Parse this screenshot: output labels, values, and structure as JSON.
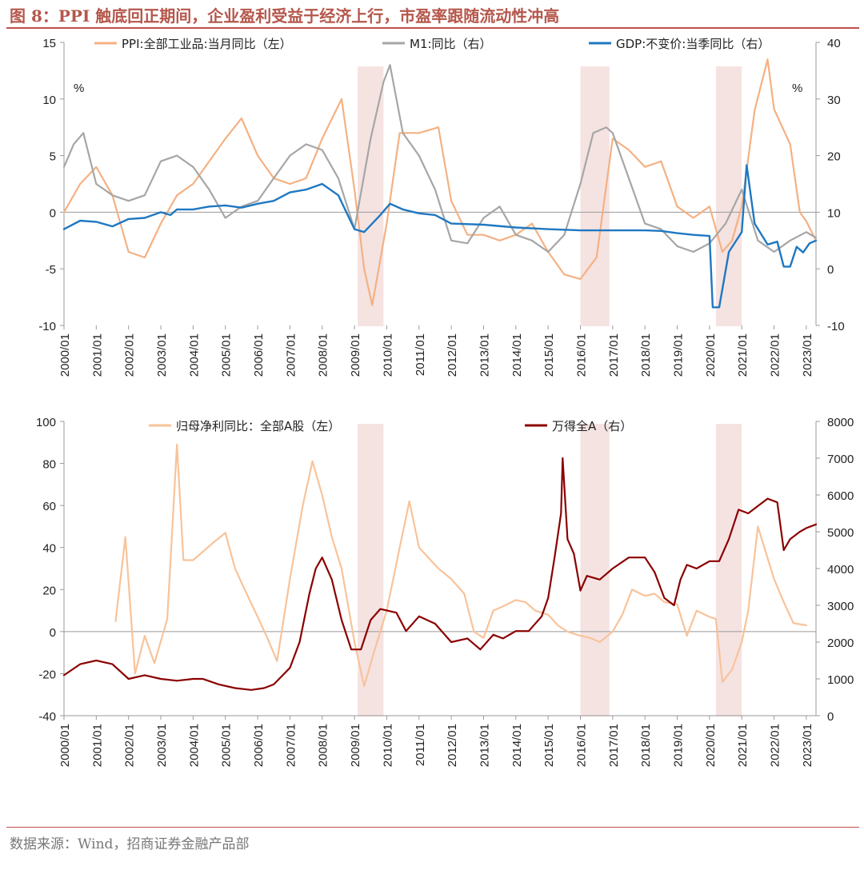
{
  "title": "图 8：PPI 触底回正期间，企业盈利受益于经济上行，市盈率跟随流动性冲高",
  "source": "数据来源：Wind，招商证券金融产品部",
  "colors": {
    "ppi": "#f4b183",
    "m1": "#a6a6a6",
    "gdp": "#1f78c1",
    "profit": "#f8c39a",
    "wind": "#8b0000",
    "shade": "#f2dcdb",
    "accent": "#c0504d"
  },
  "chart_data": [
    {
      "type": "line",
      "x_ticks": [
        "2000/01",
        "2001/01",
        "2002/01",
        "2003/01",
        "2004/01",
        "2005/01",
        "2006/01",
        "2007/01",
        "2008/01",
        "2009/01",
        "2010/01",
        "2011/01",
        "2012/01",
        "2013/01",
        "2014/01",
        "2015/01",
        "2016/01",
        "2017/01",
        "2018/01",
        "2019/01",
        "2020/01",
        "2021/01",
        "2022/01",
        "2023/01"
      ],
      "y_left_ticks": [
        "15",
        "10",
        "5",
        "0",
        "-5",
        "-10"
      ],
      "y_right_ticks": [
        "40",
        "30",
        "20",
        "10",
        "0",
        "-10"
      ],
      "y_left_range": [
        -10,
        15
      ],
      "y_right_range": [
        -10,
        40
      ],
      "left_unit": "%",
      "right_unit": "%",
      "shaded_periods": [
        [
          2009.1,
          2009.9
        ],
        [
          2016.0,
          2016.9
        ],
        [
          2020.2,
          2021.0
        ]
      ],
      "series": [
        {
          "name": "PPI:全部工业品:当月同比（左）",
          "axis": "left",
          "x": [
            2000.0,
            2000.5,
            2001.0,
            2001.5,
            2002.0,
            2002.5,
            2003.0,
            2003.5,
            2004.0,
            2004.5,
            2005.0,
            2005.5,
            2006.0,
            2006.5,
            2007.0,
            2007.5,
            2008.0,
            2008.6,
            2009.0,
            2009.3,
            2009.55,
            2010.0,
            2010.4,
            2011.0,
            2011.6,
            2012.0,
            2012.5,
            2013.0,
            2013.5,
            2014.0,
            2014.5,
            2015.0,
            2015.5,
            2016.0,
            2016.5,
            2017.0,
            2017.5,
            2018.0,
            2018.5,
            2019.0,
            2019.5,
            2020.0,
            2020.4,
            2020.7,
            2021.0,
            2021.4,
            2021.8,
            2022.0,
            2022.5,
            2022.8,
            2023.0,
            2023.3
          ],
          "values": [
            0.0,
            2.5,
            4.0,
            1.5,
            -3.5,
            -4.0,
            -1.0,
            1.5,
            2.5,
            4.5,
            6.5,
            8.3,
            5.0,
            3.0,
            2.5,
            3.0,
            6.5,
            10.0,
            2.0,
            -5.0,
            -8.2,
            -1.0,
            7.0,
            7.0,
            7.5,
            1.0,
            -2.0,
            -2.0,
            -2.5,
            -2.0,
            -1.0,
            -3.5,
            -5.5,
            -5.9,
            -4.0,
            6.5,
            5.5,
            4.0,
            4.5,
            0.5,
            -0.5,
            0.5,
            -3.5,
            -2.5,
            0.5,
            9.0,
            13.5,
            9.1,
            6.0,
            0.0,
            -0.8,
            -2.5
          ]
        },
        {
          "name": "M1:同比（右）",
          "axis": "right",
          "x": [
            2000.0,
            2000.3,
            2000.6,
            2001.0,
            2001.5,
            2002.0,
            2002.5,
            2003.0,
            2003.5,
            2004.0,
            2004.5,
            2005.0,
            2005.5,
            2006.0,
            2006.5,
            2007.0,
            2007.5,
            2008.0,
            2008.5,
            2009.0,
            2009.5,
            2009.9,
            2010.1,
            2010.5,
            2011.0,
            2011.5,
            2012.0,
            2012.5,
            2013.0,
            2013.5,
            2014.0,
            2014.5,
            2015.0,
            2015.5,
            2016.0,
            2016.4,
            2016.8,
            2017.0,
            2017.5,
            2018.0,
            2018.5,
            2019.0,
            2019.5,
            2020.0,
            2020.5,
            2021.0,
            2021.5,
            2022.0,
            2022.5,
            2023.0,
            2023.3
          ],
          "values": [
            18.0,
            22.0,
            24.0,
            15.0,
            13.0,
            12.0,
            13.0,
            19.0,
            20.0,
            18.0,
            14.0,
            9.0,
            11.0,
            12.0,
            16.0,
            20.0,
            22.0,
            21.0,
            16.0,
            7.0,
            23.0,
            33.0,
            36.0,
            24.0,
            20.0,
            14.0,
            5.0,
            4.5,
            9.0,
            11.0,
            6.0,
            5.0,
            3.0,
            6.0,
            15.0,
            24.0,
            25.0,
            24.0,
            16.0,
            8.0,
            7.0,
            4.0,
            3.0,
            4.5,
            8.0,
            14.0,
            5.0,
            3.0,
            5.0,
            6.5,
            5.5
          ]
        },
        {
          "name": "GDP:不变价:当季同比（右）",
          "axis": "right",
          "x": [
            2000.0,
            2000.5,
            2001.0,
            2001.5,
            2002.0,
            2002.5,
            2003.0,
            2003.3,
            2003.5,
            2004.0,
            2004.5,
            2005.0,
            2005.5,
            2006.0,
            2006.5,
            2007.0,
            2007.5,
            2008.0,
            2008.5,
            2009.0,
            2009.3,
            2009.8,
            2010.1,
            2010.5,
            2011.0,
            2011.5,
            2012.0,
            2013.0,
            2014.0,
            2015.0,
            2016.0,
            2017.0,
            2018.0,
            2018.5,
            2019.0,
            2019.5,
            2020.0,
            2020.1,
            2020.3,
            2020.6,
            2021.0,
            2021.15,
            2021.4,
            2021.8,
            2022.1,
            2022.3,
            2022.5,
            2022.7,
            2022.9,
            2023.1,
            2023.3
          ],
          "values": [
            7.0,
            8.5,
            8.3,
            7.5,
            8.8,
            9.0,
            10.0,
            9.5,
            10.5,
            10.5,
            11.0,
            11.2,
            10.8,
            11.5,
            12.0,
            13.5,
            14.0,
            15.0,
            13.0,
            7.0,
            6.5,
            9.5,
            11.5,
            10.5,
            9.8,
            9.5,
            8.0,
            7.8,
            7.3,
            7.0,
            6.8,
            6.8,
            6.8,
            6.7,
            6.3,
            6.0,
            5.8,
            -6.8,
            -6.8,
            3.0,
            6.5,
            18.3,
            8.0,
            4.3,
            4.8,
            0.4,
            0.4,
            3.9,
            2.9,
            4.5,
            5.0
          ]
        }
      ]
    },
    {
      "type": "line",
      "x_ticks": [
        "2000/01",
        "2001/01",
        "2002/01",
        "2003/01",
        "2004/01",
        "2005/01",
        "2006/01",
        "2007/01",
        "2008/01",
        "2009/01",
        "2010/01",
        "2011/01",
        "2012/01",
        "2013/01",
        "2014/01",
        "2015/01",
        "2016/01",
        "2017/01",
        "2018/01",
        "2019/01",
        "2020/01",
        "2021/01",
        "2022/01",
        "2023/01"
      ],
      "y_left_ticks": [
        "100",
        "80",
        "60",
        "40",
        "20",
        "0",
        "-20",
        "-40"
      ],
      "y_right_ticks": [
        "8000",
        "7000",
        "6000",
        "5000",
        "4000",
        "3000",
        "2000",
        "1000",
        "0"
      ],
      "y_left_range": [
        -40,
        100
      ],
      "y_right_range": [
        0,
        8000
      ],
      "shaded_periods": [
        [
          2009.1,
          2009.9
        ],
        [
          2016.0,
          2016.9
        ],
        [
          2020.2,
          2021.0
        ]
      ],
      "series": [
        {
          "name": "归母净利同比：全部A股（左）",
          "axis": "left",
          "x": [
            2001.6,
            2001.9,
            2002.2,
            2002.5,
            2002.8,
            2003.2,
            2003.5,
            2003.7,
            2004.0,
            2004.3,
            2004.6,
            2005.0,
            2005.3,
            2005.6,
            2006.0,
            2006.3,
            2006.6,
            2007.0,
            2007.4,
            2007.7,
            2008.0,
            2008.3,
            2008.6,
            2009.0,
            2009.3,
            2009.6,
            2010.0,
            2010.4,
            2010.7,
            2011.0,
            2011.3,
            2011.6,
            2012.0,
            2012.4,
            2012.7,
            2013.0,
            2013.3,
            2013.6,
            2014.0,
            2014.3,
            2014.6,
            2015.0,
            2015.3,
            2015.6,
            2016.0,
            2016.3,
            2016.6,
            2017.0,
            2017.3,
            2017.6,
            2018.0,
            2018.3,
            2018.6,
            2019.0,
            2019.3,
            2019.6,
            2020.0,
            2020.2,
            2020.4,
            2020.7,
            2021.0,
            2021.2,
            2021.5,
            2021.8,
            2022.0,
            2022.3,
            2022.6,
            2023.0
          ],
          "values": [
            5.0,
            45.0,
            -20.0,
            -2.0,
            -15.0,
            6.0,
            89.0,
            34.0,
            34.0,
            38.0,
            42.0,
            47.0,
            30.0,
            20.0,
            7.0,
            -3.0,
            -14.0,
            25.0,
            60.0,
            81.0,
            65.0,
            45.0,
            30.0,
            -5.0,
            -26.0,
            -10.0,
            10.0,
            40.0,
            62.0,
            40.0,
            35.0,
            30.0,
            25.0,
            18.0,
            0.0,
            -3.0,
            10.0,
            12.0,
            15.0,
            14.0,
            10.0,
            8.0,
            3.0,
            0.0,
            -2.0,
            -3.0,
            -5.0,
            0.0,
            8.0,
            20.0,
            17.0,
            18.0,
            14.0,
            13.0,
            -2.0,
            10.0,
            7.0,
            6.0,
            -24.0,
            -18.0,
            -5.0,
            10.0,
            50.0,
            35.0,
            25.0,
            14.0,
            4.0,
            3.0
          ]
        },
        {
          "name": "万得全A（右）",
          "axis": "right",
          "x": [
            2000.0,
            2000.5,
            2001.0,
            2001.5,
            2002.0,
            2002.5,
            2003.0,
            2003.5,
            2004.0,
            2004.3,
            2004.8,
            2005.3,
            2005.8,
            2006.2,
            2006.5,
            2007.0,
            2007.3,
            2007.6,
            2007.8,
            2008.0,
            2008.3,
            2008.6,
            2008.9,
            2009.2,
            2009.5,
            2009.8,
            2010.3,
            2010.6,
            2011.0,
            2011.5,
            2012.0,
            2012.5,
            2012.9,
            2013.3,
            2013.6,
            2014.0,
            2014.4,
            2014.8,
            2015.0,
            2015.2,
            2015.4,
            2015.45,
            2015.6,
            2015.8,
            2016.0,
            2016.2,
            2016.6,
            2017.0,
            2017.5,
            2018.0,
            2018.3,
            2018.6,
            2018.9,
            2019.1,
            2019.3,
            2019.6,
            2020.0,
            2020.3,
            2020.6,
            2020.9,
            2021.2,
            2021.5,
            2021.8,
            2022.1,
            2022.3,
            2022.5,
            2022.8,
            2023.0,
            2023.3
          ],
          "values": [
            1100,
            1400,
            1500,
            1400,
            1000,
            1100,
            1000,
            950,
            1000,
            1000,
            850,
            750,
            700,
            750,
            850,
            1300,
            2000,
            3300,
            4000,
            4300,
            3700,
            2600,
            1800,
            1800,
            2600,
            2900,
            2800,
            2300,
            2700,
            2500,
            2000,
            2100,
            1800,
            2200,
            2100,
            2300,
            2300,
            2700,
            3200,
            4300,
            5500,
            7000,
            4800,
            4400,
            3400,
            3800,
            3700,
            4000,
            4300,
            4300,
            3900,
            3200,
            3000,
            3700,
            4100,
            4000,
            4200,
            4200,
            4800,
            5600,
            5500,
            5700,
            5900,
            5800,
            4500,
            4800,
            5000,
            5100,
            5200
          ]
        }
      ]
    }
  ]
}
